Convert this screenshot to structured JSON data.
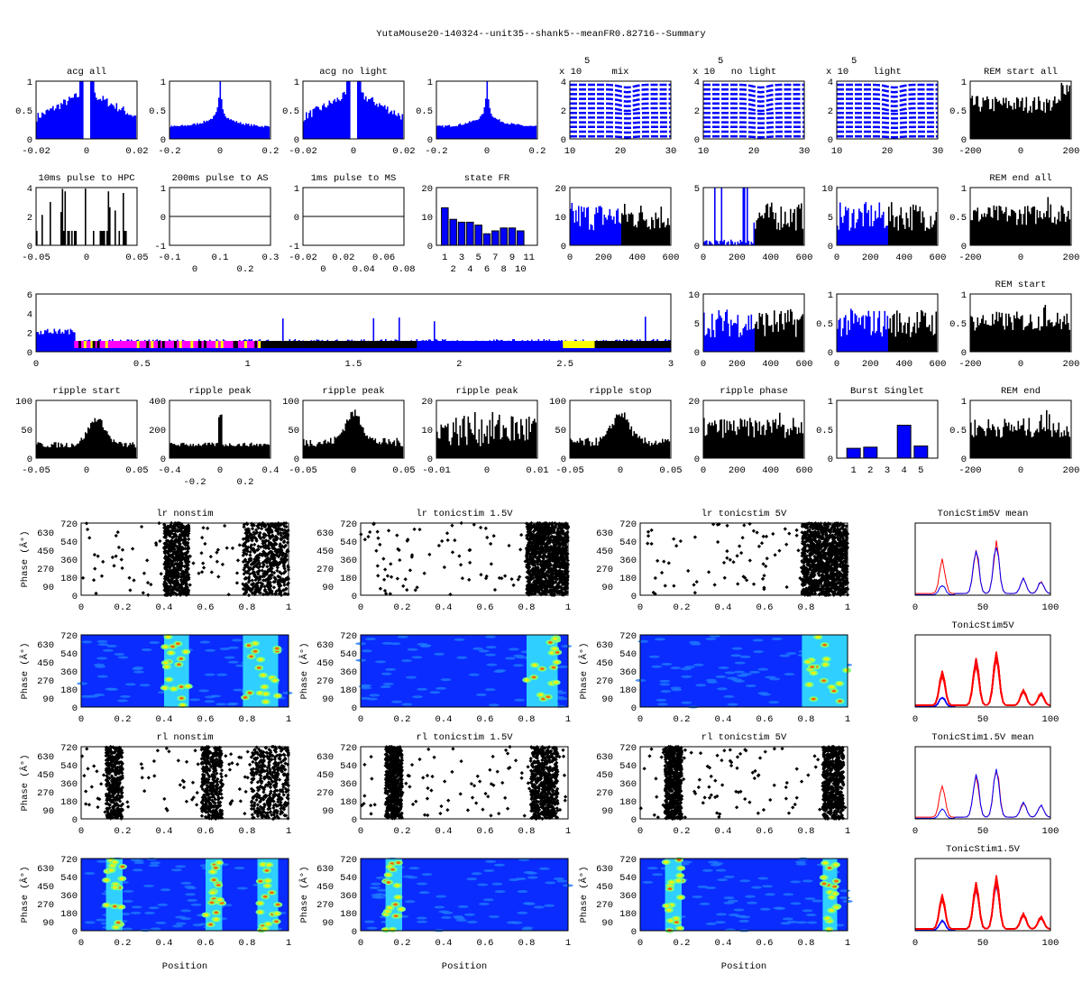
{
  "figure_title": "YutaMouse20-140324--unit35--shank5--meanFR0.82716--Summary",
  "colors": {
    "blue": "#0000ff",
    "black": "#000000",
    "red": "#ff0000",
    "magenta": "#ff00ff",
    "yellow": "#ffff00"
  },
  "chart_data": [
    {
      "type": "bar",
      "title": "acg all",
      "color": "#0000ff",
      "shape": "acg_dip",
      "xticks": [
        "-0.02",
        "0",
        "0.02"
      ],
      "yticks": [
        "0",
        "0.5",
        "1"
      ],
      "ylim": [
        0,
        1
      ]
    },
    {
      "type": "bar",
      "title": "",
      "color": "#0000ff",
      "shape": "peak",
      "xticks": [
        "-0.2",
        "0",
        "0.2"
      ],
      "yticks": [
        "0",
        "0.5",
        "1"
      ],
      "ylim": [
        0,
        1
      ]
    },
    {
      "type": "bar",
      "title": "acg no light",
      "color": "#0000ff",
      "shape": "acg_dip",
      "xticks": [
        "-0.02",
        "0",
        "0.02"
      ],
      "yticks": [
        "0",
        "0.5",
        "1"
      ],
      "ylim": [
        0,
        1
      ]
    },
    {
      "type": "bar",
      "title": "",
      "color": "#0000ff",
      "shape": "peak",
      "xticks": [
        "-0.2",
        "0",
        "0.2"
      ],
      "yticks": [
        "0",
        "0.5",
        "1"
      ],
      "ylim": [
        0,
        1
      ]
    },
    {
      "type": "line",
      "title": "mix",
      "exponent": "x 10",
      "exponent_power": "5",
      "shape": "waveform",
      "xticks": [
        "10",
        "20",
        "30"
      ],
      "yticks": [
        "0",
        "2",
        "4"
      ]
    },
    {
      "type": "line",
      "title": "no light",
      "exponent": "x 10",
      "exponent_power": "5",
      "shape": "waveform",
      "xticks": [
        "10",
        "20",
        "30"
      ],
      "yticks": [
        "0",
        "2",
        "4"
      ]
    },
    {
      "type": "line",
      "title": "light",
      "exponent": "x 10",
      "exponent_power": "5",
      "shape": "waveform",
      "xticks": [
        "10",
        "20",
        "30"
      ],
      "yticks": [
        "0",
        "2",
        "4"
      ]
    },
    {
      "type": "bar",
      "title": "REM start all",
      "color": "#000000",
      "shape": "noisy_rise",
      "xticks": [
        "-200",
        "0",
        "200"
      ],
      "yticks": [
        "0",
        "0.5",
        "1"
      ],
      "ylim": [
        0,
        1
      ]
    },
    {
      "type": "bar",
      "title": "10ms pulse to HPC",
      "color": "#000000",
      "shape": "sparse",
      "xticks": [
        "-0.05",
        "0",
        "0.05"
      ],
      "yticks": [
        "0",
        "2",
        "4"
      ],
      "ylim": [
        0,
        4
      ]
    },
    {
      "type": "line",
      "title": "200ms pulse to AS",
      "shape": "flat",
      "xticks": [
        "-0.1",
        "0",
        "0.1",
        "0.2",
        "0.3"
      ],
      "yticks": [
        "-1",
        "0",
        "1"
      ],
      "ylim": [
        -1,
        1
      ]
    },
    {
      "type": "line",
      "title": "1ms pulse to MS",
      "shape": "flat",
      "xticks": [
        "-0.02",
        "0",
        "0.02",
        "0.04",
        "0.06",
        "0.08"
      ],
      "yticks": [
        "-1",
        "0",
        "1"
      ],
      "ylim": [
        -1,
        1
      ]
    },
    {
      "type": "bar",
      "title": "state FR",
      "color": "#0000ff",
      "shape": "state",
      "categories": [
        "1",
        "2",
        "3",
        "4",
        "5",
        "6",
        "7",
        "8",
        "9",
        "10",
        "11"
      ],
      "values": [
        13,
        9,
        8,
        8,
        7,
        4,
        5,
        6,
        6,
        5,
        0
      ],
      "xticks": [
        "1",
        "2",
        "3",
        "4",
        "5",
        "6",
        "7",
        "8",
        "9",
        "10",
        "11"
      ],
      "yticks": [
        "0",
        "10",
        "20"
      ],
      "ylim": [
        0,
        20
      ]
    },
    {
      "type": "bar",
      "title": "",
      "color": "#0000ff",
      "shape": "bluethenblack",
      "xticks": [
        "0",
        "200",
        "400",
        "600"
      ],
      "yticks": [
        "0",
        "10",
        "20"
      ],
      "ylim": [
        0,
        20
      ]
    },
    {
      "type": "bar",
      "title": "",
      "color": "#0000ff",
      "shape": "bluethenblack_sparse",
      "xticks": [
        "0",
        "200",
        "400",
        "600"
      ],
      "yticks": [
        "0",
        "5"
      ],
      "ylim": [
        0,
        5
      ]
    },
    {
      "type": "bar",
      "title": "",
      "color": "#0000ff",
      "shape": "bluethenblack",
      "xticks": [
        "0",
        "200",
        "400",
        "600"
      ],
      "yticks": [
        "0",
        "5",
        "10"
      ],
      "ylim": [
        0,
        10
      ]
    },
    {
      "type": "bar",
      "title": "REM end all",
      "color": "#000000",
      "shape": "noisy_mid",
      "xticks": [
        "-200",
        "0",
        "200"
      ],
      "yticks": [
        "0",
        "0.5",
        "1"
      ],
      "ylim": [
        0,
        1
      ]
    },
    {
      "type": "bar",
      "title": "",
      "color": "#0000ff",
      "shape": "session",
      "xticks": [
        "0",
        "0.5",
        "1",
        "1.5",
        "2",
        "2.5",
        "3"
      ],
      "yticks": [
        "0",
        "2",
        "4",
        "6"
      ],
      "ylim": [
        0,
        6
      ]
    },
    {
      "type": "bar",
      "title": "",
      "color": "#0000ff",
      "shape": "bluethenblack",
      "xticks": [
        "0",
        "200",
        "400",
        "600"
      ],
      "yticks": [
        "0",
        "5",
        "10"
      ],
      "ylim": [
        0,
        10
      ]
    },
    {
      "type": "bar",
      "title": "",
      "color": "#0000ff",
      "shape": "bluethenblack",
      "xticks": [
        "0",
        "200",
        "400",
        "600"
      ],
      "yticks": [
        "0",
        "0.5",
        "1"
      ],
      "ylim": [
        0,
        1
      ]
    },
    {
      "type": "bar",
      "title": "REM start",
      "color": "#000000",
      "shape": "noisy_mid",
      "xticks": [
        "-200",
        "0",
        "200"
      ],
      "yticks": [
        "0",
        "0.5",
        "1"
      ],
      "ylim": [
        0,
        1
      ]
    },
    {
      "type": "bar",
      "title": "ripple start",
      "color": "#000000",
      "shape": "bump_right",
      "xticks": [
        "-0.05",
        "0",
        "0.05"
      ],
      "yticks": [
        "0",
        "50",
        "100"
      ],
      "ylim": [
        0,
        100
      ]
    },
    {
      "type": "bar",
      "title": "ripple peak",
      "color": "#000000",
      "shape": "spike",
      "xticks": [
        "-0.4",
        "-0.2",
        "0",
        "0.2",
        "0.4"
      ],
      "yticks": [
        "0",
        "200",
        "400"
      ],
      "ylim": [
        0,
        400
      ]
    },
    {
      "type": "bar",
      "title": "ripple peak",
      "color": "#000000",
      "shape": "bump",
      "xticks": [
        "-0.05",
        "0",
        "0.05"
      ],
      "yticks": [
        "0",
        "50",
        "100"
      ],
      "ylim": [
        0,
        100
      ]
    },
    {
      "type": "bar",
      "title": "ripple peak",
      "color": "#000000",
      "shape": "noisy_tall",
      "xticks": [
        "-0.01",
        "0",
        "0.01"
      ],
      "yticks": [
        "0",
        "10",
        "20"
      ],
      "ylim": [
        0,
        20
      ]
    },
    {
      "type": "bar",
      "title": "ripple stop",
      "color": "#000000",
      "shape": "bump",
      "xticks": [
        "-0.05",
        "0",
        "0.05"
      ],
      "yticks": [
        "0",
        "50",
        "100"
      ],
      "ylim": [
        0,
        100
      ]
    },
    {
      "type": "bar",
      "title": "ripple phase",
      "color": "#000000",
      "shape": "noisy_mid",
      "xticks": [
        "0",
        "200",
        "400",
        "600"
      ],
      "yticks": [
        "0",
        "10",
        "20"
      ],
      "ylim": [
        0,
        20
      ]
    },
    {
      "type": "bar",
      "title": "Burst Singlet",
      "color": "#0000ff",
      "shape": "burst",
      "categories": [
        "1",
        "2",
        "3",
        "4",
        "5"
      ],
      "values": [
        0.17,
        0.19,
        0,
        0.57,
        0.21
      ],
      "xticks": [
        "1",
        "2",
        "3",
        "4",
        "5"
      ],
      "yticks": [
        "0",
        "0.5",
        "1"
      ],
      "ylim": [
        0,
        1
      ]
    },
    {
      "type": "bar",
      "title": "REM end",
      "color": "#000000",
      "shape": "noisy_mid",
      "xticks": [
        "-200",
        "0",
        "200"
      ],
      "yticks": [
        "0",
        "0.5",
        "1"
      ],
      "ylim": [
        0,
        1
      ]
    },
    {
      "type": "scatter",
      "title": "lr nonstim",
      "shape": "raster",
      "bands": [
        [
          0.4,
          0.52
        ],
        [
          0.78,
          1.0
        ]
      ],
      "xticks": [
        "0",
        "0.2",
        "0.4",
        "0.6",
        "0.8",
        "1"
      ],
      "yticks": [
        "0",
        "90",
        "180",
        "270",
        "360",
        "450",
        "540",
        "630",
        "720"
      ],
      "ylabel": "Phase (Â°)"
    },
    {
      "type": "scatter",
      "title": "lr tonicstim 1.5V",
      "shape": "raster",
      "bands": [
        [
          0.8,
          1.0
        ]
      ],
      "xticks": [
        "0",
        "0.2",
        "0.4",
        "0.6",
        "0.8",
        "1"
      ],
      "yticks": [
        "0",
        "90",
        "180",
        "270",
        "360",
        "450",
        "540",
        "630",
        "720"
      ]
    },
    {
      "type": "scatter",
      "title": "lr tonicstim 5V",
      "shape": "raster",
      "bands": [
        [
          0.78,
          1.0
        ]
      ],
      "xticks": [
        "0",
        "0.2",
        "0.4",
        "0.6",
        "0.8",
        "1"
      ],
      "yticks": [
        "0",
        "90",
        "180",
        "270",
        "360",
        "450",
        "540",
        "630",
        "720"
      ]
    },
    {
      "type": "line",
      "title": "TonicStim5V mean",
      "shape": "meanlines",
      "xticks": [
        "0",
        "50",
        "100"
      ],
      "yticks": []
    },
    {
      "type": "heatmap",
      "title": "",
      "shape": "heat",
      "bands": [
        [
          0.4,
          0.52
        ],
        [
          0.78,
          0.95
        ]
      ],
      "xticks": [
        "0",
        "0.2",
        "0.4",
        "0.6",
        "0.8",
        "1"
      ],
      "yticks": [
        "0",
        "90",
        "180",
        "270",
        "360",
        "450",
        "540",
        "630",
        "720"
      ],
      "ylabel": "Phase (Â°)"
    },
    {
      "type": "heatmap",
      "title": "",
      "shape": "heat",
      "bands": [
        [
          0.8,
          0.95
        ]
      ],
      "xticks": [
        "0",
        "0.2",
        "0.4",
        "0.6",
        "0.8",
        "1"
      ],
      "yticks": [
        "0",
        "90",
        "180",
        "270",
        "360",
        "450",
        "540",
        "630",
        "720"
      ],
      "ylabel": "Phase (Â°)"
    },
    {
      "type": "heatmap",
      "title": "",
      "shape": "heat",
      "bands": [
        [
          0.78,
          1.0
        ]
      ],
      "xticks": [
        "0",
        "0.2",
        "0.4",
        "0.6",
        "0.8",
        "1"
      ],
      "yticks": [
        "0",
        "90",
        "180",
        "270",
        "360",
        "450",
        "540",
        "630",
        "720"
      ],
      "ylabel": "Phase (Â°)"
    },
    {
      "type": "line",
      "title": "TonicStim5V",
      "shape": "manylines",
      "xticks": [
        "0",
        "50",
        "100"
      ],
      "yticks": []
    },
    {
      "type": "scatter",
      "title": "rl nonstim",
      "shape": "raster",
      "bands": [
        [
          0.12,
          0.2
        ],
        [
          0.58,
          0.68
        ],
        [
          0.82,
          1.0
        ]
      ],
      "xticks": [
        "0",
        "0.2",
        "0.4",
        "0.6",
        "0.8",
        "1"
      ],
      "yticks": [
        "0",
        "90",
        "180",
        "270",
        "360",
        "450",
        "540",
        "630",
        "720"
      ],
      "ylabel": "Phase (Â°)"
    },
    {
      "type": "scatter",
      "title": "rl tonicstim 1.5V",
      "shape": "raster",
      "bands": [
        [
          0.12,
          0.2
        ],
        [
          0.82,
          0.95
        ]
      ],
      "xticks": [
        "0",
        "0.2",
        "0.4",
        "0.6",
        "0.8",
        "1"
      ],
      "yticks": [
        "0",
        "90",
        "180",
        "270",
        "360",
        "450",
        "540",
        "630",
        "720"
      ]
    },
    {
      "type": "scatter",
      "title": "rl tonicstim 5V",
      "shape": "raster",
      "bands": [
        [
          0.12,
          0.2
        ],
        [
          0.88,
          0.98
        ]
      ],
      "xticks": [
        "0",
        "0.2",
        "0.4",
        "0.6",
        "0.8",
        "1"
      ],
      "yticks": [
        "0",
        "90",
        "180",
        "270",
        "360",
        "450",
        "540",
        "630",
        "720"
      ]
    },
    {
      "type": "line",
      "title": "TonicStim1.5V mean",
      "shape": "meanlines",
      "xticks": [
        "0",
        "50",
        "100"
      ],
      "yticks": []
    },
    {
      "type": "heatmap",
      "title": "",
      "shape": "heat",
      "bands": [
        [
          0.12,
          0.2
        ],
        [
          0.6,
          0.68
        ],
        [
          0.85,
          0.95
        ]
      ],
      "xticks": [
        "0",
        "0.2",
        "0.4",
        "0.6",
        "0.8",
        "1"
      ],
      "yticks": [
        "0",
        "90",
        "180",
        "270",
        "360",
        "450",
        "540",
        "630",
        "720"
      ],
      "ylabel": "Phase (Â°)"
    },
    {
      "type": "heatmap",
      "title": "",
      "shape": "heat",
      "bands": [
        [
          0.12,
          0.2
        ]
      ],
      "xticks": [
        "0",
        "0.2",
        "0.4",
        "0.6",
        "0.8",
        "1"
      ],
      "yticks": [
        "0",
        "90",
        "180",
        "270",
        "360",
        "450",
        "540",
        "630",
        "720"
      ],
      "ylabel": "Phase (Â°)"
    },
    {
      "type": "heatmap",
      "title": "",
      "shape": "heat",
      "bands": [
        [
          0.12,
          0.2
        ],
        [
          0.88,
          0.95
        ]
      ],
      "xticks": [
        "0",
        "0.2",
        "0.4",
        "0.6",
        "0.8",
        "1"
      ],
      "yticks": [
        "0",
        "90",
        "180",
        "270",
        "360",
        "450",
        "540",
        "630",
        "720"
      ],
      "ylabel": "Phase (Â°)"
    },
    {
      "type": "line",
      "title": "TonicStim1.5V",
      "shape": "manylines",
      "xticks": [
        "0",
        "50",
        "100"
      ],
      "yticks": []
    }
  ],
  "xlabels": [
    "Position",
    "Position",
    "Position"
  ]
}
